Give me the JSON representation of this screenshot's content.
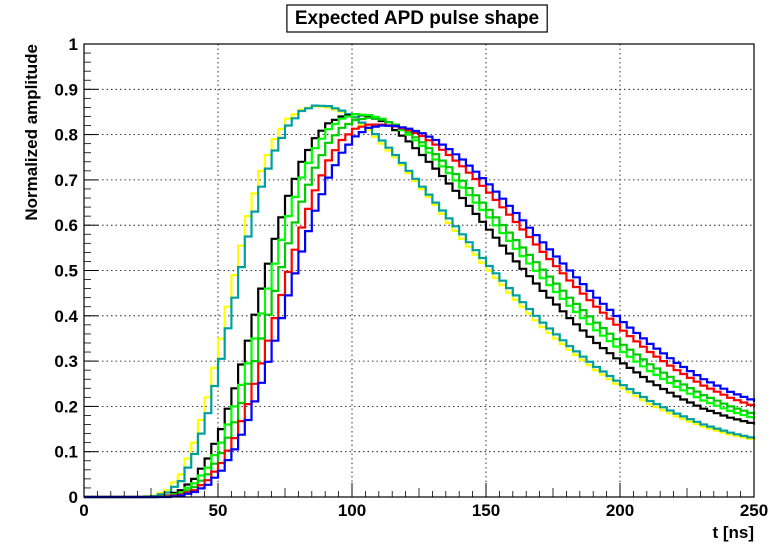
{
  "chart_data": {
    "type": "line",
    "title": "Expected APD pulse shape",
    "xlabel": "t [ns]",
    "ylabel": "Normalized amplitude",
    "xlim": [
      0,
      250
    ],
    "ylim": [
      0,
      1
    ],
    "x_ticks": [
      "0",
      "50",
      "100",
      "150",
      "200",
      "250"
    ],
    "y_ticks": [
      "0",
      "0.1",
      "0.2",
      "0.3",
      "0.4",
      "0.5",
      "0.6",
      "0.7",
      "0.8",
      "0.9",
      "1"
    ],
    "grid": true,
    "x": [
      0,
      10,
      20,
      25,
      30,
      35,
      40,
      45,
      50,
      55,
      60,
      65,
      70,
      75,
      80,
      85,
      90,
      95,
      100,
      105,
      110,
      115,
      120,
      125,
      130,
      135,
      140,
      145,
      150,
      160,
      170,
      180,
      190,
      200,
      210,
      220,
      230,
      240,
      250
    ],
    "series": [
      {
        "color": "#ffff00",
        "values": [
          0,
          0,
          0,
          0.003,
          0.015,
          0.05,
          0.12,
          0.22,
          0.35,
          0.49,
          0.62,
          0.72,
          0.79,
          0.835,
          0.855,
          0.863,
          0.86,
          0.85,
          0.835,
          0.81,
          0.78,
          0.75,
          0.715,
          0.68,
          0.645,
          0.605,
          0.57,
          0.535,
          0.5,
          0.435,
          0.375,
          0.325,
          0.28,
          0.24,
          0.205,
          0.178,
          0.155,
          0.138,
          0.125
        ]
      },
      {
        "color": "#00a0a0",
        "values": [
          0,
          0,
          0,
          0.002,
          0.01,
          0.035,
          0.095,
          0.185,
          0.305,
          0.44,
          0.575,
          0.685,
          0.765,
          0.82,
          0.852,
          0.864,
          0.863,
          0.853,
          0.838,
          0.815,
          0.787,
          0.755,
          0.72,
          0.685,
          0.65,
          0.615,
          0.58,
          0.545,
          0.51,
          0.445,
          0.385,
          0.333,
          0.287,
          0.247,
          0.212,
          0.184,
          0.16,
          0.142,
          0.128
        ]
      },
      {
        "color": "#000000",
        "values": [
          0,
          0,
          0,
          0,
          0.003,
          0.015,
          0.04,
          0.085,
          0.15,
          0.24,
          0.345,
          0.46,
          0.57,
          0.665,
          0.74,
          0.792,
          0.825,
          0.84,
          0.845,
          0.84,
          0.83,
          0.81,
          0.785,
          0.755,
          0.725,
          0.692,
          0.66,
          0.625,
          0.59,
          0.52,
          0.455,
          0.395,
          0.34,
          0.295,
          0.255,
          0.222,
          0.195,
          0.175,
          0.16
        ]
      },
      {
        "color": "#00ff00",
        "values": [
          0,
          0,
          0,
          0,
          0.002,
          0.01,
          0.03,
          0.065,
          0.12,
          0.2,
          0.295,
          0.405,
          0.515,
          0.62,
          0.705,
          0.77,
          0.812,
          0.835,
          0.845,
          0.843,
          0.835,
          0.82,
          0.8,
          0.775,
          0.745,
          0.715,
          0.683,
          0.65,
          0.617,
          0.548,
          0.483,
          0.422,
          0.368,
          0.32,
          0.278,
          0.243,
          0.213,
          0.19,
          0.172
        ]
      },
      {
        "color": "#00cc00",
        "values": [
          0,
          0,
          0,
          0,
          0.001,
          0.007,
          0.022,
          0.05,
          0.097,
          0.165,
          0.25,
          0.35,
          0.455,
          0.56,
          0.652,
          0.727,
          0.782,
          0.815,
          0.832,
          0.837,
          0.833,
          0.822,
          0.805,
          0.783,
          0.757,
          0.728,
          0.698,
          0.666,
          0.634,
          0.567,
          0.502,
          0.44,
          0.385,
          0.336,
          0.293,
          0.256,
          0.225,
          0.2,
          0.181
        ]
      },
      {
        "color": "#ff0000",
        "values": [
          0,
          0,
          0,
          0,
          0.001,
          0.005,
          0.015,
          0.037,
          0.075,
          0.13,
          0.205,
          0.295,
          0.395,
          0.497,
          0.595,
          0.677,
          0.743,
          0.788,
          0.813,
          0.822,
          0.822,
          0.818,
          0.81,
          0.797,
          0.778,
          0.755,
          0.73,
          0.702,
          0.672,
          0.607,
          0.541,
          0.478,
          0.42,
          0.367,
          0.32,
          0.28,
          0.246,
          0.219,
          0.198
        ]
      },
      {
        "color": "#0000ff",
        "values": [
          0,
          0,
          0,
          0,
          0,
          0.003,
          0.011,
          0.027,
          0.058,
          0.105,
          0.17,
          0.252,
          0.345,
          0.445,
          0.542,
          0.632,
          0.705,
          0.76,
          0.796,
          0.815,
          0.82,
          0.819,
          0.813,
          0.803,
          0.788,
          0.768,
          0.745,
          0.718,
          0.69,
          0.627,
          0.562,
          0.5,
          0.44,
          0.386,
          0.338,
          0.296,
          0.26,
          0.232,
          0.21
        ]
      }
    ]
  }
}
